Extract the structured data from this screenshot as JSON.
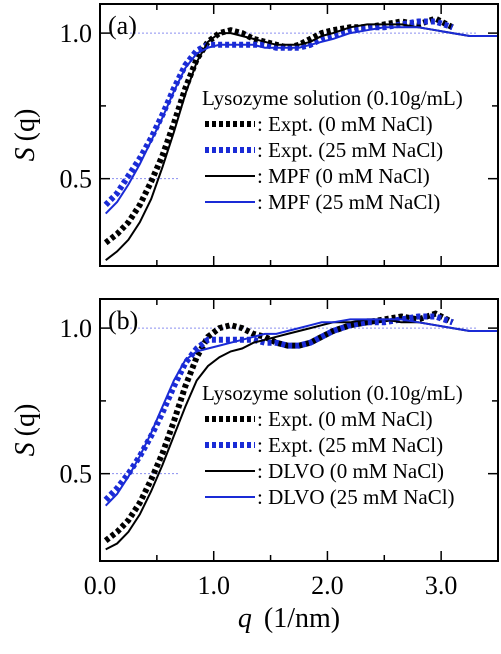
{
  "chart_data": [
    {
      "type": "line",
      "panel_label": "(a)",
      "ylabel": "S (q)",
      "ylabel_main": "S",
      "ylabel_arg": "(q)",
      "xlim": [
        0.0,
        3.5
      ],
      "ylim": [
        0.2,
        1.1
      ],
      "y_ticks": [
        {
          "value": 0.5,
          "label": "0.5"
        },
        {
          "value": 1.0,
          "label": "1.0"
        }
      ],
      "x_ticks": [],
      "legend_title": "Lysozyme solution (0.10g/mL)",
      "series": [
        {
          "name": ": Expt. (0 mM NaCl)",
          "color": "#000000",
          "style": "dotted",
          "x": [
            0.05,
            0.15,
            0.25,
            0.35,
            0.45,
            0.55,
            0.65,
            0.75,
            0.85,
            0.95,
            1.05,
            1.15,
            1.25,
            1.35,
            1.45,
            1.55,
            1.65,
            1.75,
            1.85,
            1.95,
            2.05,
            2.2,
            2.35,
            2.5,
            2.65,
            2.8,
            2.95,
            3.1
          ],
          "y": [
            0.28,
            0.31,
            0.35,
            0.41,
            0.49,
            0.58,
            0.69,
            0.81,
            0.91,
            0.97,
            1.0,
            1.01,
            1.0,
            0.98,
            0.97,
            0.96,
            0.95,
            0.96,
            0.98,
            1.0,
            1.01,
            1.02,
            1.02,
            1.03,
            1.04,
            1.03,
            1.05,
            1.02
          ]
        },
        {
          "name": ": Expt. (25 mM NaCl)",
          "color": "#1a2bd6",
          "style": "dotted",
          "x": [
            0.05,
            0.15,
            0.25,
            0.35,
            0.45,
            0.55,
            0.65,
            0.75,
            0.85,
            0.95,
            1.05,
            1.15,
            1.25,
            1.35,
            1.45,
            1.55,
            1.65,
            1.75,
            1.85,
            1.95,
            2.05,
            2.2,
            2.35,
            2.5,
            2.65,
            2.8,
            2.95,
            3.1
          ],
          "y": [
            0.41,
            0.45,
            0.51,
            0.57,
            0.64,
            0.72,
            0.81,
            0.89,
            0.94,
            0.96,
            0.96,
            0.96,
            0.96,
            0.96,
            0.96,
            0.95,
            0.95,
            0.95,
            0.96,
            0.98,
            0.99,
            1.01,
            1.02,
            1.02,
            1.03,
            1.04,
            1.04,
            1.02
          ]
        },
        {
          "name": ": MPF (0 mM NaCl)",
          "color": "#000000",
          "style": "solid",
          "x": [
            0.05,
            0.15,
            0.25,
            0.35,
            0.45,
            0.55,
            0.65,
            0.75,
            0.85,
            0.95,
            1.05,
            1.15,
            1.25,
            1.35,
            1.45,
            1.55,
            1.65,
            1.75,
            1.85,
            1.95,
            2.05,
            2.2,
            2.35,
            2.5,
            2.65,
            2.8,
            2.95,
            3.1,
            3.25,
            3.4,
            3.5
          ],
          "y": [
            0.22,
            0.25,
            0.29,
            0.35,
            0.43,
            0.54,
            0.66,
            0.79,
            0.9,
            0.97,
            1.0,
            1.0,
            0.99,
            0.98,
            0.97,
            0.96,
            0.96,
            0.96,
            0.97,
            0.99,
            1.0,
            1.02,
            1.03,
            1.03,
            1.03,
            1.02,
            1.01,
            1.0,
            0.99,
            0.99,
            0.99
          ]
        },
        {
          "name": ": MPF (25 mM NaCl)",
          "color": "#1a2bd6",
          "style": "solid",
          "x": [
            0.05,
            0.15,
            0.25,
            0.35,
            0.45,
            0.55,
            0.65,
            0.75,
            0.85,
            0.95,
            1.05,
            1.15,
            1.25,
            1.35,
            1.45,
            1.55,
            1.65,
            1.75,
            1.85,
            1.95,
            2.05,
            2.2,
            2.35,
            2.5,
            2.65,
            2.8,
            2.95,
            3.1,
            3.25,
            3.4,
            3.5
          ],
          "y": [
            0.38,
            0.42,
            0.48,
            0.55,
            0.63,
            0.71,
            0.8,
            0.88,
            0.93,
            0.95,
            0.96,
            0.96,
            0.96,
            0.96,
            0.95,
            0.95,
            0.95,
            0.95,
            0.96,
            0.97,
            0.98,
            1.0,
            1.01,
            1.02,
            1.02,
            1.02,
            1.01,
            1.0,
            0.99,
            0.99,
            0.99
          ]
        }
      ]
    },
    {
      "type": "line",
      "panel_label": "(b)",
      "ylabel": "S (q)",
      "ylabel_main": "S",
      "ylabel_arg": "(q)",
      "xlabel": "q (1/nm)",
      "xlabel_main": "q",
      "xlabel_unit": "(1/nm)",
      "xlim": [
        0.0,
        3.5
      ],
      "ylim": [
        0.2,
        1.1
      ],
      "y_ticks": [
        {
          "value": 0.5,
          "label": "0.5"
        },
        {
          "value": 1.0,
          "label": "1.0"
        }
      ],
      "x_ticks": [
        {
          "value": 0.0,
          "label": "0.0"
        },
        {
          "value": 1.0,
          "label": "1.0"
        },
        {
          "value": 2.0,
          "label": "2.0"
        },
        {
          "value": 3.0,
          "label": "3.0"
        }
      ],
      "legend_title": "Lysozyme solution (0.10g/mL)",
      "series": [
        {
          "name": ": Expt. (0 mM NaCl)",
          "color": "#000000",
          "style": "dotted",
          "x": [
            0.05,
            0.15,
            0.25,
            0.35,
            0.45,
            0.55,
            0.65,
            0.75,
            0.85,
            0.95,
            1.05,
            1.15,
            1.25,
            1.35,
            1.45,
            1.55,
            1.65,
            1.75,
            1.85,
            1.95,
            2.05,
            2.2,
            2.35,
            2.5,
            2.65,
            2.8,
            2.95,
            3.1
          ],
          "y": [
            0.27,
            0.3,
            0.34,
            0.4,
            0.48,
            0.57,
            0.68,
            0.8,
            0.9,
            0.97,
            1.0,
            1.01,
            1.0,
            0.98,
            0.97,
            0.95,
            0.94,
            0.94,
            0.95,
            0.97,
            0.99,
            1.01,
            1.02,
            1.03,
            1.04,
            1.03,
            1.05,
            1.02
          ]
        },
        {
          "name": ": Expt. (25 mM NaCl)",
          "color": "#1a2bd6",
          "style": "dotted",
          "x": [
            0.05,
            0.15,
            0.25,
            0.35,
            0.45,
            0.55,
            0.65,
            0.75,
            0.85,
            0.95,
            1.05,
            1.15,
            1.25,
            1.35,
            1.45,
            1.55,
            1.65,
            1.75,
            1.85,
            1.95,
            2.05,
            2.2,
            2.35,
            2.5,
            2.65,
            2.8,
            2.95,
            3.1
          ],
          "y": [
            0.41,
            0.45,
            0.5,
            0.56,
            0.63,
            0.71,
            0.8,
            0.88,
            0.93,
            0.96,
            0.96,
            0.96,
            0.96,
            0.96,
            0.95,
            0.95,
            0.94,
            0.94,
            0.95,
            0.97,
            0.99,
            1.01,
            1.02,
            1.02,
            1.03,
            1.04,
            1.04,
            1.02
          ]
        },
        {
          "name": ": DLVO (0 mM NaCl)",
          "color": "#000000",
          "style": "solid",
          "x": [
            0.05,
            0.15,
            0.25,
            0.35,
            0.45,
            0.55,
            0.65,
            0.75,
            0.85,
            0.95,
            1.05,
            1.15,
            1.25,
            1.35,
            1.45,
            1.55,
            1.65,
            1.75,
            1.85,
            1.95,
            2.05,
            2.2,
            2.35,
            2.5,
            2.65,
            2.8,
            2.95,
            3.1,
            3.25,
            3.4,
            3.5
          ],
          "y": [
            0.24,
            0.26,
            0.3,
            0.36,
            0.44,
            0.53,
            0.63,
            0.73,
            0.82,
            0.87,
            0.9,
            0.92,
            0.93,
            0.95,
            0.96,
            0.97,
            0.98,
            0.99,
            1.0,
            1.01,
            1.02,
            1.02,
            1.03,
            1.03,
            1.02,
            1.02,
            1.01,
            1.0,
            0.99,
            0.99,
            0.99
          ]
        },
        {
          "name": ": DLVO (25 mM NaCl)",
          "color": "#1a2bd6",
          "style": "solid",
          "x": [
            0.05,
            0.15,
            0.25,
            0.35,
            0.45,
            0.55,
            0.65,
            0.75,
            0.85,
            0.95,
            1.05,
            1.15,
            1.25,
            1.35,
            1.45,
            1.55,
            1.65,
            1.75,
            1.85,
            1.95,
            2.05,
            2.2,
            2.35,
            2.5,
            2.65,
            2.8,
            2.95,
            3.1,
            3.25,
            3.4,
            3.5
          ],
          "y": [
            0.39,
            0.43,
            0.49,
            0.56,
            0.64,
            0.73,
            0.82,
            0.89,
            0.92,
            0.93,
            0.94,
            0.95,
            0.96,
            0.97,
            0.98,
            0.98,
            0.99,
            1.0,
            1.01,
            1.02,
            1.02,
            1.03,
            1.03,
            1.03,
            1.03,
            1.02,
            1.01,
            1.0,
            0.99,
            0.99,
            0.99
          ]
        }
      ]
    }
  ]
}
